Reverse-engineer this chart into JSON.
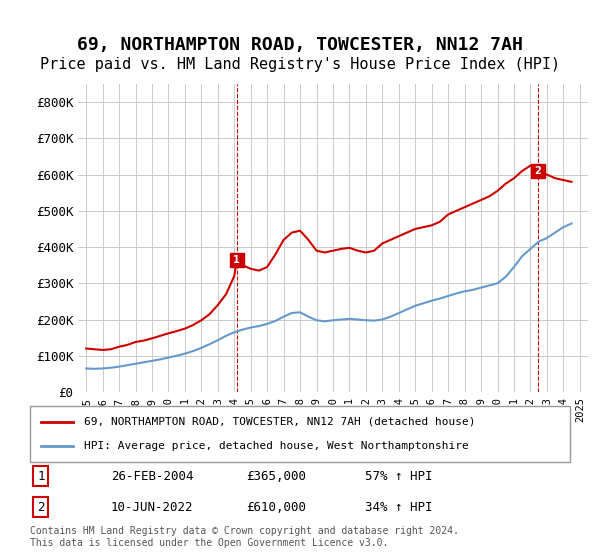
{
  "title": "69, NORTHAMPTON ROAD, TOWCESTER, NN12 7AH",
  "subtitle": "Price paid vs. HM Land Registry's House Price Index (HPI)",
  "title_fontsize": 13,
  "subtitle_fontsize": 11,
  "background_color": "#ffffff",
  "grid_color": "#cccccc",
  "red_color": "#cc0000",
  "blue_color": "#6699cc",
  "ylim": [
    0,
    850000
  ],
  "yticks": [
    0,
    100000,
    200000,
    300000,
    400000,
    500000,
    600000,
    700000,
    800000
  ],
  "ytick_labels": [
    "£0",
    "£100K",
    "£200K",
    "£300K",
    "£400K",
    "£500K",
    "£600K",
    "£700K",
    "£800K"
  ],
  "point1": {
    "year": 2004.15,
    "value": 365000,
    "label": "1"
  },
  "point2": {
    "year": 2022.44,
    "value": 610000,
    "label": "2"
  },
  "legend_line1": "69, NORTHAMPTON ROAD, TOWCESTER, NN12 7AH (detached house)",
  "legend_line2": "HPI: Average price, detached house, West Northamptonshire",
  "table_row1": [
    "1",
    "26-FEB-2004",
    "£365,000",
    "57% ↑ HPI"
  ],
  "table_row2": [
    "2",
    "10-JUN-2022",
    "£610,000",
    "34% ↑ HPI"
  ],
  "footnote": "Contains HM Land Registry data © Crown copyright and database right 2024.\nThis data is licensed under the Open Government Licence v3.0.",
  "red_x": [
    1995.0,
    1995.5,
    1996.0,
    1996.5,
    1997.0,
    1997.5,
    1998.0,
    1998.5,
    1999.0,
    1999.5,
    2000.0,
    2000.5,
    2001.0,
    2001.5,
    2002.0,
    2002.5,
    2003.0,
    2003.5,
    2004.0,
    2004.15,
    2004.5,
    2005.0,
    2005.5,
    2006.0,
    2006.5,
    2007.0,
    2007.5,
    2008.0,
    2008.5,
    2009.0,
    2009.5,
    2010.0,
    2010.5,
    2011.0,
    2011.5,
    2012.0,
    2012.5,
    2013.0,
    2013.5,
    2014.0,
    2014.5,
    2015.0,
    2015.5,
    2016.0,
    2016.5,
    2017.0,
    2017.5,
    2018.0,
    2018.5,
    2019.0,
    2019.5,
    2020.0,
    2020.5,
    2021.0,
    2021.5,
    2022.0,
    2022.44,
    2022.5,
    2023.0,
    2023.5,
    2024.0,
    2024.5
  ],
  "red_y": [
    120000,
    118000,
    116000,
    118000,
    125000,
    130000,
    138000,
    142000,
    148000,
    155000,
    162000,
    168000,
    175000,
    185000,
    198000,
    215000,
    240000,
    270000,
    320000,
    365000,
    350000,
    340000,
    335000,
    345000,
    380000,
    420000,
    440000,
    445000,
    420000,
    390000,
    385000,
    390000,
    395000,
    398000,
    390000,
    385000,
    390000,
    410000,
    420000,
    430000,
    440000,
    450000,
    455000,
    460000,
    470000,
    490000,
    500000,
    510000,
    520000,
    530000,
    540000,
    555000,
    575000,
    590000,
    610000,
    625000,
    610000,
    605000,
    600000,
    590000,
    585000,
    580000
  ],
  "blue_x": [
    1995.0,
    1995.5,
    1996.0,
    1996.5,
    1997.0,
    1997.5,
    1998.0,
    1998.5,
    1999.0,
    1999.5,
    2000.0,
    2000.5,
    2001.0,
    2001.5,
    2002.0,
    2002.5,
    2003.0,
    2003.5,
    2004.0,
    2004.5,
    2005.0,
    2005.5,
    2006.0,
    2006.5,
    2007.0,
    2007.5,
    2008.0,
    2008.5,
    2009.0,
    2009.5,
    2010.0,
    2010.5,
    2011.0,
    2011.5,
    2012.0,
    2012.5,
    2013.0,
    2013.5,
    2014.0,
    2014.5,
    2015.0,
    2015.5,
    2016.0,
    2016.5,
    2017.0,
    2017.5,
    2018.0,
    2018.5,
    2019.0,
    2019.5,
    2020.0,
    2020.5,
    2021.0,
    2021.5,
    2022.0,
    2022.5,
    2023.0,
    2023.5,
    2024.0,
    2024.5
  ],
  "blue_y": [
    65000,
    64000,
    65000,
    67000,
    70000,
    74000,
    78000,
    82000,
    86000,
    90000,
    95000,
    100000,
    106000,
    113000,
    122000,
    132000,
    143000,
    155000,
    165000,
    172000,
    178000,
    182000,
    188000,
    196000,
    208000,
    218000,
    220000,
    208000,
    198000,
    195000,
    198000,
    200000,
    202000,
    200000,
    198000,
    197000,
    200000,
    208000,
    218000,
    228000,
    238000,
    245000,
    252000,
    258000,
    265000,
    272000,
    278000,
    282000,
    288000,
    294000,
    300000,
    318000,
    345000,
    375000,
    395000,
    415000,
    425000,
    440000,
    455000,
    465000
  ]
}
